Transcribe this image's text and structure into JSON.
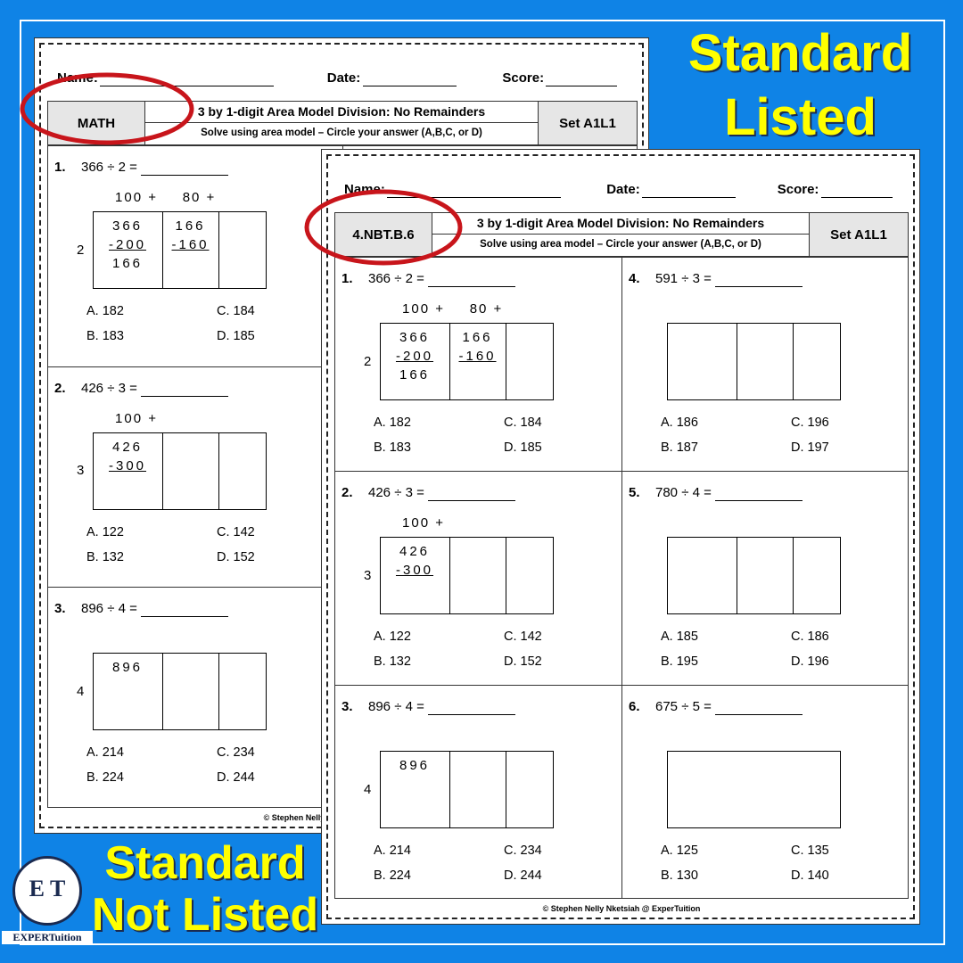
{
  "banner_top": [
    "Standard",
    "Listed"
  ],
  "banner_bottom": [
    "Standard",
    "Not Listed"
  ],
  "logo": {
    "letters": "E T",
    "text": "EXPERTuition"
  },
  "sheets": [
    {
      "name_label": "Name:",
      "date_label": "Date:",
      "score_label": "Score:",
      "subject": "MATH",
      "title": "3 by 1-digit Area Model Division: No Remainders",
      "instructions": "Solve using area model – Circle your answer (A,B,C, or D)",
      "set": "Set A1L1",
      "footer": "© Stephen Nelly Nketsiah @ ExperTuition",
      "problems": [
        {
          "num": "1.",
          "expr": "366 ÷ 2 =",
          "divisor": "2",
          "headers": [
            "100 +",
            "80 +"
          ],
          "cells": [
            [
              "366",
              "-200",
              "166"
            ],
            [
              "166",
              "-160"
            ],
            []
          ],
          "choices": [
            "A. 182",
            "B. 183",
            "C. 184",
            "D. 185"
          ]
        },
        {
          "num": "2.",
          "expr": "426 ÷ 3 =",
          "divisor": "3",
          "headers": [
            "100 +"
          ],
          "cells": [
            [
              "426",
              "-300"
            ],
            [],
            []
          ],
          "choices": [
            "A. 122",
            "B. 132",
            "C. 142",
            "D. 152"
          ]
        },
        {
          "num": "3.",
          "expr": "896 ÷ 4 =",
          "divisor": "4",
          "headers": [],
          "cells": [
            [
              "896"
            ],
            [],
            []
          ],
          "choices": [
            "A. 214",
            "B. 224",
            "C. 234",
            "D. 244"
          ]
        }
      ]
    },
    {
      "name_label": "Name:",
      "date_label": "Date:",
      "score_label": "Score:",
      "subject": "4.NBT.B.6",
      "title": "3 by 1-digit Area Model Division: No Remainders",
      "instructions": "Solve using area model – Circle your answer (A,B,C, or D)",
      "set": "Set A1L1",
      "footer": "© Stephen Nelly Nketsiah @ ExperTuition",
      "problems": [
        {
          "num": "1.",
          "expr": "366 ÷ 2 =",
          "divisor": "2",
          "headers": [
            "100 +",
            "80 +"
          ],
          "cells": [
            [
              "366",
              "-200",
              "166"
            ],
            [
              "166",
              "-160"
            ],
            []
          ],
          "choices": [
            "A. 182",
            "B. 183",
            "C. 184",
            "D. 185"
          ]
        },
        {
          "num": "2.",
          "expr": "426 ÷ 3 =",
          "divisor": "3",
          "headers": [
            "100 +"
          ],
          "cells": [
            [
              "426",
              "-300"
            ],
            [],
            []
          ],
          "choices": [
            "A. 122",
            "B. 132",
            "C. 142",
            "D. 152"
          ]
        },
        {
          "num": "3.",
          "expr": "896 ÷ 4 =",
          "divisor": "4",
          "headers": [],
          "cells": [
            [
              "896"
            ],
            [],
            []
          ],
          "choices": [
            "A. 214",
            "B. 224",
            "C. 234",
            "D. 244"
          ]
        },
        {
          "num": "4.",
          "expr": "591 ÷ 3 =",
          "headers": [],
          "cells": [
            [],
            [],
            []
          ],
          "choices": [
            "A. 186",
            "B. 187",
            "C. 196",
            "D. 197"
          ]
        },
        {
          "num": "5.",
          "expr": "780 ÷ 4 =",
          "headers": [],
          "cells": [
            [],
            [],
            []
          ],
          "choices": [
            "A. 185",
            "B. 195",
            "C. 186",
            "D. 196"
          ]
        },
        {
          "num": "6.",
          "expr": "675 ÷ 5 =",
          "headers": [],
          "cells": [
            []
          ],
          "choices": [
            "A. 125",
            "B. 130",
            "C. 135",
            "D. 140"
          ]
        }
      ]
    }
  ]
}
